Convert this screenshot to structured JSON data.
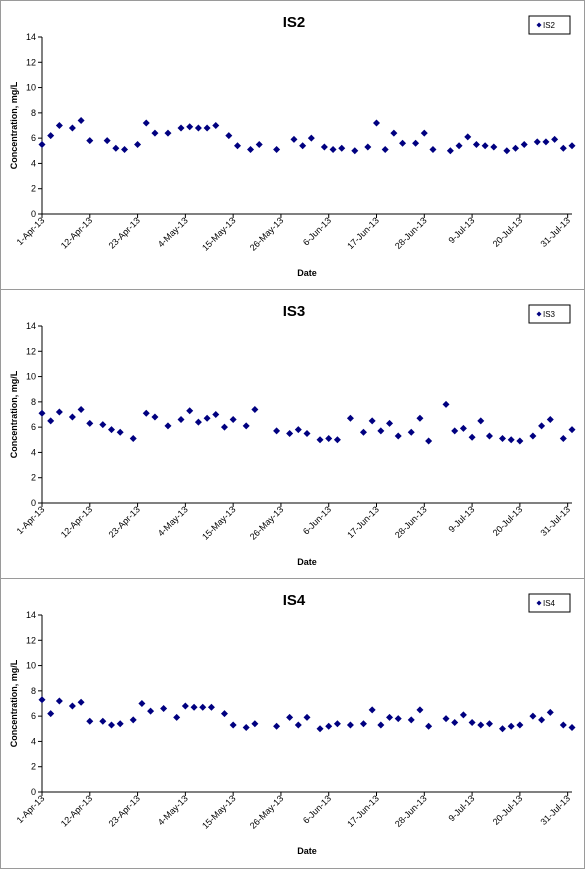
{
  "chart_data": [
    {
      "type": "scatter",
      "title": "IS2",
      "xlabel": "Date",
      "ylabel": "Concentration, mg/L",
      "ylim": [
        0,
        14
      ],
      "y_ticks": [
        0,
        2,
        4,
        6,
        8,
        10,
        12,
        14
      ],
      "x_ticks": [
        "1-Apr-13",
        "12-Apr-13",
        "23-Apr-13",
        "4-May-13",
        "15-May-13",
        "26-May-13",
        "6-Jun-13",
        "17-Jun-13",
        "28-Jun-13",
        "9-Jul-13",
        "20-Jul-13",
        "31-Jul-13"
      ],
      "x_range": [
        "2013-04-01",
        "2013-08-01"
      ],
      "grid": false,
      "legend_position": "top-right",
      "marker_color": "#000080",
      "series": [
        {
          "name": "IS2",
          "points": [
            {
              "x": "2013-04-01",
              "y": 5.5
            },
            {
              "x": "2013-04-03",
              "y": 6.2
            },
            {
              "x": "2013-04-05",
              "y": 7.0
            },
            {
              "x": "2013-04-08",
              "y": 6.8
            },
            {
              "x": "2013-04-10",
              "y": 7.4
            },
            {
              "x": "2013-04-12",
              "y": 5.8
            },
            {
              "x": "2013-04-16",
              "y": 5.8
            },
            {
              "x": "2013-04-18",
              "y": 5.2
            },
            {
              "x": "2013-04-20",
              "y": 5.1
            },
            {
              "x": "2013-04-23",
              "y": 5.5
            },
            {
              "x": "2013-04-25",
              "y": 7.2
            },
            {
              "x": "2013-04-27",
              "y": 6.4
            },
            {
              "x": "2013-04-30",
              "y": 6.4
            },
            {
              "x": "2013-05-03",
              "y": 6.8
            },
            {
              "x": "2013-05-05",
              "y": 6.9
            },
            {
              "x": "2013-05-07",
              "y": 6.8
            },
            {
              "x": "2013-05-09",
              "y": 6.8
            },
            {
              "x": "2013-05-11",
              "y": 7.0
            },
            {
              "x": "2013-05-14",
              "y": 6.2
            },
            {
              "x": "2013-05-16",
              "y": 5.4
            },
            {
              "x": "2013-05-19",
              "y": 5.1
            },
            {
              "x": "2013-05-21",
              "y": 5.5
            },
            {
              "x": "2013-05-25",
              "y": 5.1
            },
            {
              "x": "2013-05-29",
              "y": 5.9
            },
            {
              "x": "2013-05-31",
              "y": 5.4
            },
            {
              "x": "2013-06-02",
              "y": 6.0
            },
            {
              "x": "2013-06-05",
              "y": 5.3
            },
            {
              "x": "2013-06-07",
              "y": 5.1
            },
            {
              "x": "2013-06-09",
              "y": 5.2
            },
            {
              "x": "2013-06-12",
              "y": 5.0
            },
            {
              "x": "2013-06-15",
              "y": 5.3
            },
            {
              "x": "2013-06-17",
              "y": 7.2
            },
            {
              "x": "2013-06-19",
              "y": 5.1
            },
            {
              "x": "2013-06-21",
              "y": 6.4
            },
            {
              "x": "2013-06-23",
              "y": 5.6
            },
            {
              "x": "2013-06-26",
              "y": 5.6
            },
            {
              "x": "2013-06-28",
              "y": 6.4
            },
            {
              "x": "2013-06-30",
              "y": 5.1
            },
            {
              "x": "2013-07-04",
              "y": 5.0
            },
            {
              "x": "2013-07-06",
              "y": 5.4
            },
            {
              "x": "2013-07-08",
              "y": 6.1
            },
            {
              "x": "2013-07-10",
              "y": 5.5
            },
            {
              "x": "2013-07-12",
              "y": 5.4
            },
            {
              "x": "2013-07-14",
              "y": 5.3
            },
            {
              "x": "2013-07-17",
              "y": 5.0
            },
            {
              "x": "2013-07-19",
              "y": 5.2
            },
            {
              "x": "2013-07-21",
              "y": 5.5
            },
            {
              "x": "2013-07-24",
              "y": 5.7
            },
            {
              "x": "2013-07-26",
              "y": 5.7
            },
            {
              "x": "2013-07-28",
              "y": 5.9
            },
            {
              "x": "2013-07-30",
              "y": 5.2
            },
            {
              "x": "2013-08-01",
              "y": 5.4
            }
          ]
        }
      ]
    },
    {
      "type": "scatter",
      "title": "IS3",
      "xlabel": "Date",
      "ylabel": "Concentration, mg/L",
      "ylim": [
        0,
        14
      ],
      "y_ticks": [
        0,
        2,
        4,
        6,
        8,
        10,
        12,
        14
      ],
      "x_ticks": [
        "1-Apr-13",
        "12-Apr-13",
        "23-Apr-13",
        "4-May-13",
        "15-May-13",
        "26-May-13",
        "6-Jun-13",
        "17-Jun-13",
        "28-Jun-13",
        "9-Jul-13",
        "20-Jul-13",
        "31-Jul-13"
      ],
      "x_range": [
        "2013-04-01",
        "2013-08-01"
      ],
      "grid": false,
      "legend_position": "top-right",
      "marker_color": "#000080",
      "series": [
        {
          "name": "IS3",
          "points": [
            {
              "x": "2013-04-01",
              "y": 7.1
            },
            {
              "x": "2013-04-03",
              "y": 6.5
            },
            {
              "x": "2013-04-05",
              "y": 7.2
            },
            {
              "x": "2013-04-08",
              "y": 6.8
            },
            {
              "x": "2013-04-10",
              "y": 7.4
            },
            {
              "x": "2013-04-12",
              "y": 6.3
            },
            {
              "x": "2013-04-15",
              "y": 6.2
            },
            {
              "x": "2013-04-17",
              "y": 5.8
            },
            {
              "x": "2013-04-19",
              "y": 5.6
            },
            {
              "x": "2013-04-22",
              "y": 5.1
            },
            {
              "x": "2013-04-25",
              "y": 7.1
            },
            {
              "x": "2013-04-27",
              "y": 6.8
            },
            {
              "x": "2013-04-30",
              "y": 6.1
            },
            {
              "x": "2013-05-03",
              "y": 6.6
            },
            {
              "x": "2013-05-05",
              "y": 7.3
            },
            {
              "x": "2013-05-07",
              "y": 6.4
            },
            {
              "x": "2013-05-09",
              "y": 6.7
            },
            {
              "x": "2013-05-11",
              "y": 7.0
            },
            {
              "x": "2013-05-13",
              "y": 6.0
            },
            {
              "x": "2013-05-15",
              "y": 6.6
            },
            {
              "x": "2013-05-18",
              "y": 6.1
            },
            {
              "x": "2013-05-20",
              "y": 7.4
            },
            {
              "x": "2013-05-25",
              "y": 5.7
            },
            {
              "x": "2013-05-28",
              "y": 5.5
            },
            {
              "x": "2013-05-30",
              "y": 5.8
            },
            {
              "x": "2013-06-01",
              "y": 5.5
            },
            {
              "x": "2013-06-04",
              "y": 5.0
            },
            {
              "x": "2013-06-06",
              "y": 5.1
            },
            {
              "x": "2013-06-08",
              "y": 5.0
            },
            {
              "x": "2013-06-11",
              "y": 6.7
            },
            {
              "x": "2013-06-14",
              "y": 5.6
            },
            {
              "x": "2013-06-16",
              "y": 6.5
            },
            {
              "x": "2013-06-18",
              "y": 5.7
            },
            {
              "x": "2013-06-20",
              "y": 6.3
            },
            {
              "x": "2013-06-22",
              "y": 5.3
            },
            {
              "x": "2013-06-25",
              "y": 5.6
            },
            {
              "x": "2013-06-27",
              "y": 6.7
            },
            {
              "x": "2013-06-29",
              "y": 4.9
            },
            {
              "x": "2013-07-03",
              "y": 7.8
            },
            {
              "x": "2013-07-05",
              "y": 5.7
            },
            {
              "x": "2013-07-07",
              "y": 5.9
            },
            {
              "x": "2013-07-09",
              "y": 5.2
            },
            {
              "x": "2013-07-11",
              "y": 6.5
            },
            {
              "x": "2013-07-13",
              "y": 5.3
            },
            {
              "x": "2013-07-16",
              "y": 5.1
            },
            {
              "x": "2013-07-18",
              "y": 5.0
            },
            {
              "x": "2013-07-20",
              "y": 4.9
            },
            {
              "x": "2013-07-23",
              "y": 5.3
            },
            {
              "x": "2013-07-25",
              "y": 6.1
            },
            {
              "x": "2013-07-27",
              "y": 6.6
            },
            {
              "x": "2013-07-30",
              "y": 5.1
            },
            {
              "x": "2013-08-01",
              "y": 5.8
            }
          ]
        }
      ]
    },
    {
      "type": "scatter",
      "title": "IS4",
      "xlabel": "Date",
      "ylabel": "Concentration, mg/L",
      "ylim": [
        0,
        14
      ],
      "y_ticks": [
        0,
        2,
        4,
        6,
        8,
        10,
        12,
        14
      ],
      "x_ticks": [
        "1-Apr-13",
        "12-Apr-13",
        "23-Apr-13",
        "4-May-13",
        "15-May-13",
        "26-May-13",
        "6-Jun-13",
        "17-Jun-13",
        "28-Jun-13",
        "9-Jul-13",
        "20-Jul-13",
        "31-Jul-13"
      ],
      "x_range": [
        "2013-04-01",
        "2013-08-01"
      ],
      "grid": false,
      "legend_position": "top-right",
      "marker_color": "#000080",
      "series": [
        {
          "name": "IS4",
          "points": [
            {
              "x": "2013-04-01",
              "y": 7.3
            },
            {
              "x": "2013-04-03",
              "y": 6.2
            },
            {
              "x": "2013-04-05",
              "y": 7.2
            },
            {
              "x": "2013-04-08",
              "y": 6.8
            },
            {
              "x": "2013-04-10",
              "y": 7.1
            },
            {
              "x": "2013-04-12",
              "y": 5.6
            },
            {
              "x": "2013-04-15",
              "y": 5.6
            },
            {
              "x": "2013-04-17",
              "y": 5.3
            },
            {
              "x": "2013-04-19",
              "y": 5.4
            },
            {
              "x": "2013-04-22",
              "y": 5.7
            },
            {
              "x": "2013-04-24",
              "y": 7.0
            },
            {
              "x": "2013-04-26",
              "y": 6.4
            },
            {
              "x": "2013-04-29",
              "y": 6.6
            },
            {
              "x": "2013-05-02",
              "y": 5.9
            },
            {
              "x": "2013-05-04",
              "y": 6.8
            },
            {
              "x": "2013-05-06",
              "y": 6.7
            },
            {
              "x": "2013-05-08",
              "y": 6.7
            },
            {
              "x": "2013-05-10",
              "y": 6.7
            },
            {
              "x": "2013-05-13",
              "y": 6.2
            },
            {
              "x": "2013-05-15",
              "y": 5.3
            },
            {
              "x": "2013-05-18",
              "y": 5.1
            },
            {
              "x": "2013-05-20",
              "y": 5.4
            },
            {
              "x": "2013-05-25",
              "y": 5.2
            },
            {
              "x": "2013-05-28",
              "y": 5.9
            },
            {
              "x": "2013-05-30",
              "y": 5.3
            },
            {
              "x": "2013-06-01",
              "y": 5.9
            },
            {
              "x": "2013-06-04",
              "y": 5.0
            },
            {
              "x": "2013-06-06",
              "y": 5.2
            },
            {
              "x": "2013-06-08",
              "y": 5.4
            },
            {
              "x": "2013-06-11",
              "y": 5.3
            },
            {
              "x": "2013-06-14",
              "y": 5.4
            },
            {
              "x": "2013-06-16",
              "y": 6.5
            },
            {
              "x": "2013-06-18",
              "y": 5.3
            },
            {
              "x": "2013-06-20",
              "y": 5.9
            },
            {
              "x": "2013-06-22",
              "y": 5.8
            },
            {
              "x": "2013-06-25",
              "y": 5.7
            },
            {
              "x": "2013-06-27",
              "y": 6.5
            },
            {
              "x": "2013-06-29",
              "y": 5.2
            },
            {
              "x": "2013-07-03",
              "y": 5.8
            },
            {
              "x": "2013-07-05",
              "y": 5.5
            },
            {
              "x": "2013-07-07",
              "y": 6.1
            },
            {
              "x": "2013-07-09",
              "y": 5.5
            },
            {
              "x": "2013-07-11",
              "y": 5.3
            },
            {
              "x": "2013-07-13",
              "y": 5.4
            },
            {
              "x": "2013-07-16",
              "y": 5.0
            },
            {
              "x": "2013-07-18",
              "y": 5.2
            },
            {
              "x": "2013-07-20",
              "y": 5.3
            },
            {
              "x": "2013-07-23",
              "y": 6.0
            },
            {
              "x": "2013-07-25",
              "y": 5.7
            },
            {
              "x": "2013-07-27",
              "y": 6.3
            },
            {
              "x": "2013-07-30",
              "y": 5.3
            },
            {
              "x": "2013-08-01",
              "y": 5.1
            }
          ]
        }
      ]
    }
  ]
}
